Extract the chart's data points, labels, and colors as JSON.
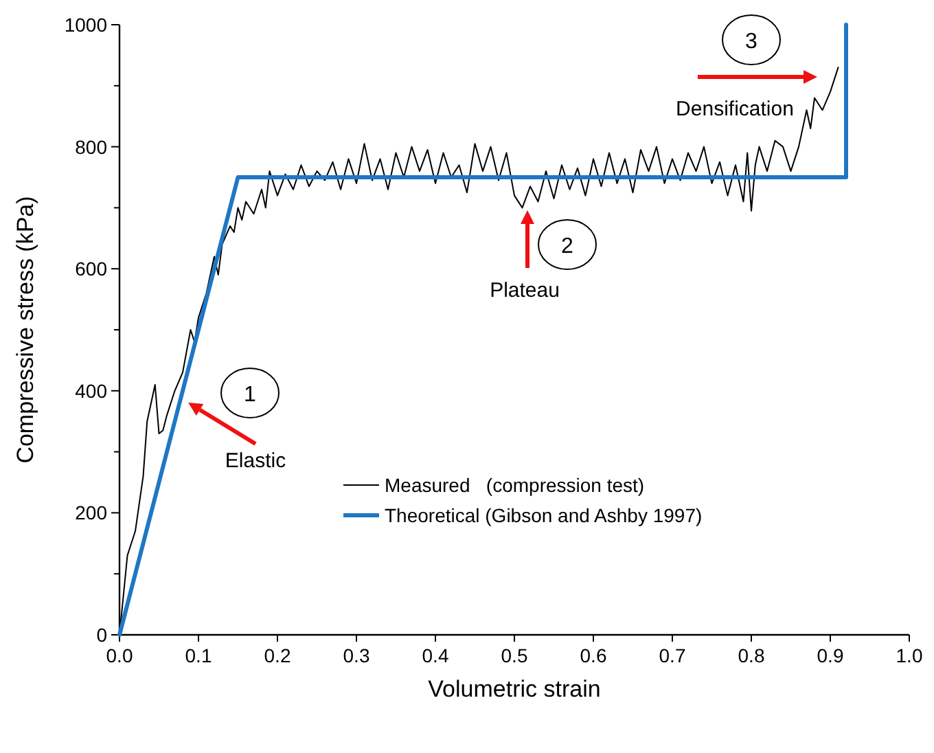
{
  "chart_data": {
    "type": "line",
    "xlabel": "Volumetric strain",
    "ylabel": "Compressive stress (kPa)",
    "xlim": [
      0,
      1
    ],
    "ylim": [
      0,
      1000
    ],
    "xticks": [
      {
        "value": 0,
        "label": "0.0"
      },
      {
        "value": 0.1,
        "label": "0.1"
      },
      {
        "value": 0.2,
        "label": "0.2"
      },
      {
        "value": 0.3,
        "label": "0.3"
      },
      {
        "value": 0.4,
        "label": "0.4"
      },
      {
        "value": 0.5,
        "label": "0.5"
      },
      {
        "value": 0.6,
        "label": "0.6"
      },
      {
        "value": 0.7,
        "label": "0.7"
      },
      {
        "value": 0.8,
        "label": "0.8"
      },
      {
        "value": 0.9,
        "label": "0.9"
      },
      {
        "value": 1,
        "label": "1.0"
      }
    ],
    "yticks": [
      0,
      {
        "value": 100,
        "label": null
      },
      200,
      {
        "value": 300,
        "label": null
      },
      400,
      {
        "value": 500,
        "label": null
      },
      600,
      {
        "value": 700,
        "label": null
      },
      800,
      {
        "value": 900,
        "label": null
      },
      1000
    ],
    "grid": false,
    "legend": "center right",
    "marker": "none",
    "series": [
      {
        "name": "Measured   (compression test)",
        "color": "#000000",
        "x": [
          0,
          0.01,
          0.02,
          0.03,
          0.035,
          0.045,
          0.05,
          0.055,
          0.06,
          0.07,
          0.08,
          0.09,
          0.095,
          0.1,
          0.11,
          0.12,
          0.125,
          0.13,
          0.14,
          0.145,
          0.15,
          0.155,
          0.16,
          0.17,
          0.18,
          0.185,
          0.19,
          0.2,
          0.21,
          0.22,
          0.23,
          0.24,
          0.25,
          0.26,
          0.27,
          0.28,
          0.29,
          0.3,
          0.31,
          0.32,
          0.33,
          0.34,
          0.35,
          0.36,
          0.37,
          0.38,
          0.39,
          0.4,
          0.41,
          0.42,
          0.43,
          0.44,
          0.45,
          0.46,
          0.47,
          0.48,
          0.49,
          0.5,
          0.51,
          0.52,
          0.53,
          0.54,
          0.55,
          0.56,
          0.57,
          0.58,
          0.59,
          0.6,
          0.61,
          0.62,
          0.63,
          0.64,
          0.65,
          0.66,
          0.67,
          0.68,
          0.69,
          0.7,
          0.71,
          0.72,
          0.73,
          0.74,
          0.75,
          0.76,
          0.77,
          0.78,
          0.79,
          0.795,
          0.8,
          0.805,
          0.81,
          0.82,
          0.83,
          0.84,
          0.85,
          0.86,
          0.87,
          0.875,
          0.88,
          0.89,
          0.9,
          0.91
        ],
        "values": [
          0,
          130,
          170,
          260,
          350,
          410,
          330,
          335,
          360,
          400,
          430,
          500,
          480,
          520,
          560,
          620,
          590,
          640,
          670,
          660,
          700,
          680,
          710,
          690,
          730,
          700,
          760,
          720,
          755,
          730,
          770,
          735,
          760,
          745,
          775,
          730,
          780,
          740,
          805,
          745,
          780,
          730,
          790,
          750,
          800,
          760,
          795,
          740,
          790,
          750,
          770,
          725,
          805,
          760,
          800,
          745,
          790,
          720,
          700,
          735,
          710,
          760,
          715,
          770,
          730,
          765,
          720,
          780,
          735,
          790,
          740,
          780,
          725,
          795,
          760,
          800,
          740,
          780,
          745,
          790,
          760,
          800,
          740,
          775,
          720,
          770,
          710,
          790,
          695,
          770,
          800,
          760,
          810,
          800,
          760,
          800,
          860,
          830,
          880,
          860,
          890,
          930
        ]
      },
      {
        "name": "Theoretical (Gibson and Ashby 1997)",
        "color": "#1f77c4",
        "x": [
          0,
          0.15,
          0.92,
          0.92
        ],
        "values": [
          0,
          750,
          750,
          1000
        ]
      }
    ],
    "annotations": [
      "1",
      "Elastic",
      "2",
      "Plateau",
      "3",
      "Densification"
    ]
  }
}
